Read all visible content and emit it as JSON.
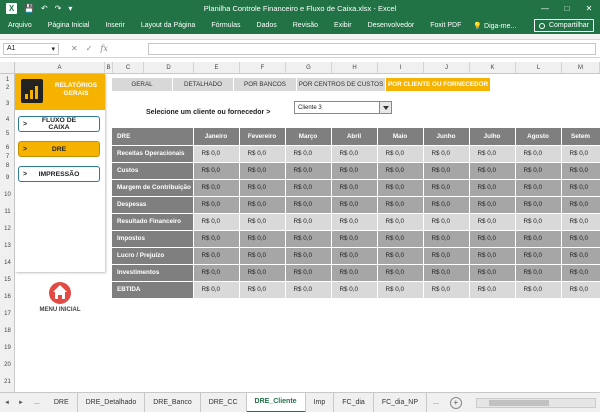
{
  "window": {
    "title": "Planilha Controle Financeiro e Fluxo de Caixa.xlsx - Excel",
    "app_icon": "X",
    "controls": [
      "—",
      "□",
      "✕"
    ]
  },
  "quick_access": {
    "save_icon": "💾",
    "undo_icon": "↶",
    "redo_icon": "↷",
    "more_icon": "▾"
  },
  "ribbon": {
    "tabs": [
      "Arquivo",
      "Página Inicial",
      "Inserir",
      "Layout da Página",
      "Fórmulas",
      "Dados",
      "Revisão",
      "Exibir",
      "Desenvolvedor",
      "Foxit PDF"
    ],
    "tell_me": "💡 Diga-me...",
    "share": "Compartilhar"
  },
  "formula_bar": {
    "name_box": "A1",
    "name_box_arrow": "▾",
    "cancel": "✕",
    "enter": "✓",
    "fx": "fx",
    "value": ""
  },
  "columns": [
    "A",
    "B",
    "C",
    "D",
    "E",
    "F",
    "G",
    "H",
    "I",
    "J",
    "K",
    "L",
    "M"
  ],
  "rows": [
    "1",
    "2",
    "3",
    "4",
    "5",
    "6",
    "7",
    "8",
    "9",
    "10",
    "11",
    "12",
    "13",
    "14",
    "15",
    "16",
    "17",
    "18",
    "19",
    "20",
    "21"
  ],
  "sidebar": {
    "title_line1": "RELATÓRIOS",
    "title_line2": "GERAIS",
    "buttons": [
      {
        "label": "FLUXO DE CAIXA",
        "arrow": ">"
      },
      {
        "label": "DRE",
        "arrow": ">"
      },
      {
        "label": "IMPRESSÃO",
        "arrow": ">"
      }
    ],
    "menu_label": "MENU INICIAL"
  },
  "view_tabs": [
    "GERAL",
    "DETALHADO",
    "POR BANCOS",
    "POR CENTROS DE CUSTOS",
    "POR CLIENTE OU FORNECEDOR"
  ],
  "selector": {
    "label": "Selecione um cliente ou fornecedor >",
    "value": "Cliente 3"
  },
  "dre": {
    "header": "DRE",
    "months": [
      "Janeiro",
      "Fevereiro",
      "Março",
      "Abril",
      "Maio",
      "Junho",
      "Julho",
      "Agosto",
      "Setem"
    ],
    "rows": [
      {
        "label": "Receitas Operacionais",
        "values": [
          "R$ 0,0",
          "R$ 0,0",
          "R$ 0,0",
          "R$ 0,0",
          "R$ 0,0",
          "R$ 0,0",
          "R$ 0,0",
          "R$ 0,0",
          "R$ 0,0"
        ]
      },
      {
        "label": "Custos",
        "values": [
          "R$ 0,0",
          "R$ 0,0",
          "R$ 0,0",
          "R$ 0,0",
          "R$ 0,0",
          "R$ 0,0",
          "R$ 0,0",
          "R$ 0,0",
          "R$ 0,0"
        ]
      },
      {
        "label": "Margem de Contribuição",
        "values": [
          "R$ 0,0",
          "R$ 0,0",
          "R$ 0,0",
          "R$ 0,0",
          "R$ 0,0",
          "R$ 0,0",
          "R$ 0,0",
          "R$ 0,0",
          "R$ 0,0"
        ]
      },
      {
        "label": "Despesas",
        "values": [
          "R$ 0,0",
          "R$ 0,0",
          "R$ 0,0",
          "R$ 0,0",
          "R$ 0,0",
          "R$ 0,0",
          "R$ 0,0",
          "R$ 0,0",
          "R$ 0,0"
        ]
      },
      {
        "label": "Resultado Financeiro",
        "values": [
          "R$ 0,0",
          "R$ 0,0",
          "R$ 0,0",
          "R$ 0,0",
          "R$ 0,0",
          "R$ 0,0",
          "R$ 0,0",
          "R$ 0,0",
          "R$ 0,0"
        ]
      },
      {
        "label": "Impostos",
        "values": [
          "R$ 0,0",
          "R$ 0,0",
          "R$ 0,0",
          "R$ 0,0",
          "R$ 0,0",
          "R$ 0,0",
          "R$ 0,0",
          "R$ 0,0",
          "R$ 0,0"
        ]
      },
      {
        "label": "Lucro / Prejuízo",
        "values": [
          "R$ 0,0",
          "R$ 0,0",
          "R$ 0,0",
          "R$ 0,0",
          "R$ 0,0",
          "R$ 0,0",
          "R$ 0,0",
          "R$ 0,0",
          "R$ 0,0"
        ]
      },
      {
        "label": "Investimentos",
        "values": [
          "R$ 0,0",
          "R$ 0,0",
          "R$ 0,0",
          "R$ 0,0",
          "R$ 0,0",
          "R$ 0,0",
          "R$ 0,0",
          "R$ 0,0",
          "R$ 0,0"
        ]
      },
      {
        "label": "EBTIDA",
        "values": [
          "R$ 0,0",
          "R$ 0,0",
          "R$ 0,0",
          "R$ 0,0",
          "R$ 0,0",
          "R$ 0,0",
          "R$ 0,0",
          "R$ 0,0",
          "R$ 0,0"
        ]
      }
    ]
  },
  "sheet_tabs": {
    "nav_prev": "◄",
    "nav_next": "►",
    "more_left": "...",
    "tabs": [
      "DRE",
      "DRE_Detalhado",
      "DRE_Banco",
      "DRE_CC",
      "DRE_Cliente",
      "Imp",
      "FC_dia",
      "FC_dia_NP"
    ],
    "active": "DRE_Cliente",
    "more_right": "...",
    "add": "+"
  },
  "colors": {
    "excel_green": "#217346",
    "accent_yellow": "#f5b300",
    "header_gray": "#7f7f7f",
    "home_red": "#e14b44"
  }
}
